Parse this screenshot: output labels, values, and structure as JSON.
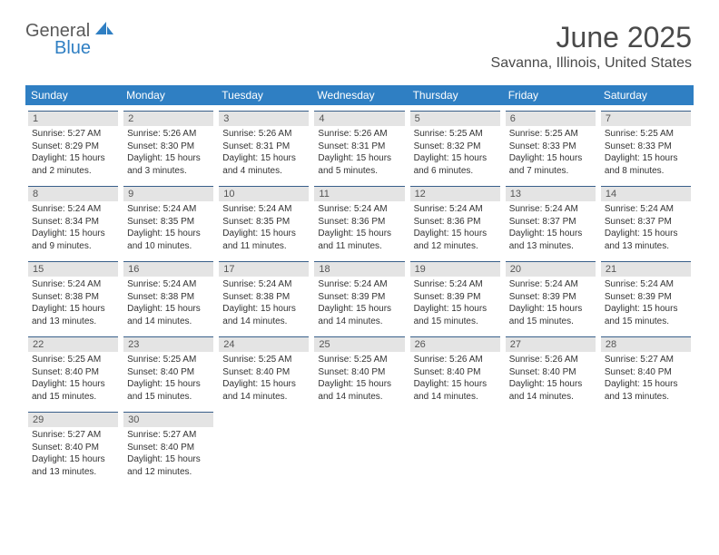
{
  "logo": {
    "text1": "General",
    "text2": "Blue"
  },
  "header": {
    "title": "June 2025",
    "location": "Savanna, Illinois, United States"
  },
  "colors": {
    "header_bg": "#2f7fc3",
    "header_text": "#ffffff",
    "daynum_bg": "#e4e4e4",
    "daynum_border": "#385f8a",
    "logo_blue": "#2f7fc3"
  },
  "days_of_week": [
    "Sunday",
    "Monday",
    "Tuesday",
    "Wednesday",
    "Thursday",
    "Friday",
    "Saturday"
  ],
  "first_dow_index": 0,
  "days": [
    {
      "n": 1,
      "sunrise": "5:27 AM",
      "sunset": "8:29 PM",
      "daylight": "15 hours and 2 minutes."
    },
    {
      "n": 2,
      "sunrise": "5:26 AM",
      "sunset": "8:30 PM",
      "daylight": "15 hours and 3 minutes."
    },
    {
      "n": 3,
      "sunrise": "5:26 AM",
      "sunset": "8:31 PM",
      "daylight": "15 hours and 4 minutes."
    },
    {
      "n": 4,
      "sunrise": "5:26 AM",
      "sunset": "8:31 PM",
      "daylight": "15 hours and 5 minutes."
    },
    {
      "n": 5,
      "sunrise": "5:25 AM",
      "sunset": "8:32 PM",
      "daylight": "15 hours and 6 minutes."
    },
    {
      "n": 6,
      "sunrise": "5:25 AM",
      "sunset": "8:33 PM",
      "daylight": "15 hours and 7 minutes."
    },
    {
      "n": 7,
      "sunrise": "5:25 AM",
      "sunset": "8:33 PM",
      "daylight": "15 hours and 8 minutes."
    },
    {
      "n": 8,
      "sunrise": "5:24 AM",
      "sunset": "8:34 PM",
      "daylight": "15 hours and 9 minutes."
    },
    {
      "n": 9,
      "sunrise": "5:24 AM",
      "sunset": "8:35 PM",
      "daylight": "15 hours and 10 minutes."
    },
    {
      "n": 10,
      "sunrise": "5:24 AM",
      "sunset": "8:35 PM",
      "daylight": "15 hours and 11 minutes."
    },
    {
      "n": 11,
      "sunrise": "5:24 AM",
      "sunset": "8:36 PM",
      "daylight": "15 hours and 11 minutes."
    },
    {
      "n": 12,
      "sunrise": "5:24 AM",
      "sunset": "8:36 PM",
      "daylight": "15 hours and 12 minutes."
    },
    {
      "n": 13,
      "sunrise": "5:24 AM",
      "sunset": "8:37 PM",
      "daylight": "15 hours and 13 minutes."
    },
    {
      "n": 14,
      "sunrise": "5:24 AM",
      "sunset": "8:37 PM",
      "daylight": "15 hours and 13 minutes."
    },
    {
      "n": 15,
      "sunrise": "5:24 AM",
      "sunset": "8:38 PM",
      "daylight": "15 hours and 13 minutes."
    },
    {
      "n": 16,
      "sunrise": "5:24 AM",
      "sunset": "8:38 PM",
      "daylight": "15 hours and 14 minutes."
    },
    {
      "n": 17,
      "sunrise": "5:24 AM",
      "sunset": "8:38 PM",
      "daylight": "15 hours and 14 minutes."
    },
    {
      "n": 18,
      "sunrise": "5:24 AM",
      "sunset": "8:39 PM",
      "daylight": "15 hours and 14 minutes."
    },
    {
      "n": 19,
      "sunrise": "5:24 AM",
      "sunset": "8:39 PM",
      "daylight": "15 hours and 15 minutes."
    },
    {
      "n": 20,
      "sunrise": "5:24 AM",
      "sunset": "8:39 PM",
      "daylight": "15 hours and 15 minutes."
    },
    {
      "n": 21,
      "sunrise": "5:24 AM",
      "sunset": "8:39 PM",
      "daylight": "15 hours and 15 minutes."
    },
    {
      "n": 22,
      "sunrise": "5:25 AM",
      "sunset": "8:40 PM",
      "daylight": "15 hours and 15 minutes."
    },
    {
      "n": 23,
      "sunrise": "5:25 AM",
      "sunset": "8:40 PM",
      "daylight": "15 hours and 15 minutes."
    },
    {
      "n": 24,
      "sunrise": "5:25 AM",
      "sunset": "8:40 PM",
      "daylight": "15 hours and 14 minutes."
    },
    {
      "n": 25,
      "sunrise": "5:25 AM",
      "sunset": "8:40 PM",
      "daylight": "15 hours and 14 minutes."
    },
    {
      "n": 26,
      "sunrise": "5:26 AM",
      "sunset": "8:40 PM",
      "daylight": "15 hours and 14 minutes."
    },
    {
      "n": 27,
      "sunrise": "5:26 AM",
      "sunset": "8:40 PM",
      "daylight": "15 hours and 14 minutes."
    },
    {
      "n": 28,
      "sunrise": "5:27 AM",
      "sunset": "8:40 PM",
      "daylight": "15 hours and 13 minutes."
    },
    {
      "n": 29,
      "sunrise": "5:27 AM",
      "sunset": "8:40 PM",
      "daylight": "15 hours and 13 minutes."
    },
    {
      "n": 30,
      "sunrise": "5:27 AM",
      "sunset": "8:40 PM",
      "daylight": "15 hours and 12 minutes."
    }
  ],
  "labels": {
    "sunrise": "Sunrise:",
    "sunset": "Sunset:",
    "daylight": "Daylight:"
  }
}
